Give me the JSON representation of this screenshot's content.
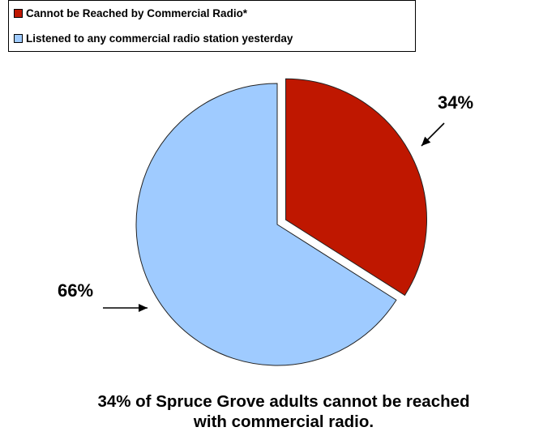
{
  "chart_data": {
    "type": "pie",
    "title": "",
    "legend_position": "top-left",
    "series": [
      {
        "name": "Cannot be Reached by Commercial Radio*",
        "value": 34,
        "label": "34%",
        "color": "#bf1700",
        "exploded": true
      },
      {
        "name": "Listened to any commercial radio station yesterday",
        "value": 66,
        "label": "66%",
        "color": "#9fcbff",
        "exploded": false
      }
    ]
  },
  "caption": {
    "line1": "34% of Spruce Grove adults cannot be reached",
    "line2": "with commercial radio."
  }
}
